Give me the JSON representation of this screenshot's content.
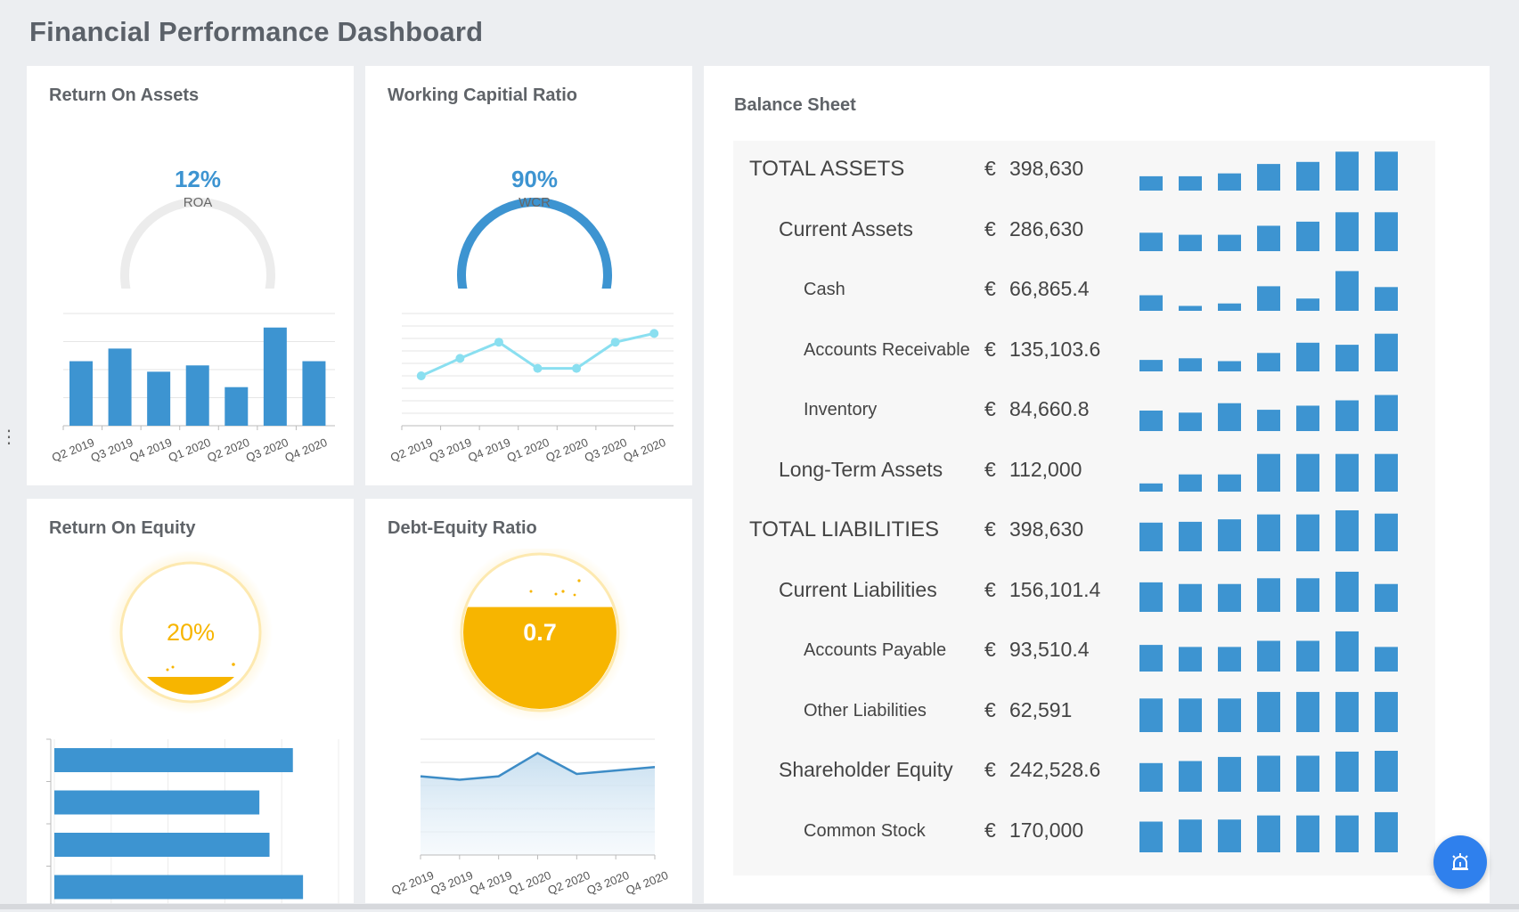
{
  "page": {
    "title": "Financial Performance Dashboard"
  },
  "cards": {
    "roa": {
      "title": "Return On Assets",
      "gauge": {
        "value_text": "12%",
        "label": "ROA",
        "fraction": 0.12
      },
      "chart_data": {
        "type": "bar",
        "categories": [
          "Q2 2019",
          "Q3 2019",
          "Q4 2019",
          "Q1 2020",
          "Q2 2020",
          "Q3 2020",
          "Q4 2020"
        ],
        "values": [
          9.2,
          11,
          7.7,
          8.6,
          5.5,
          14,
          9.2
        ],
        "ylim": [
          0,
          16
        ]
      }
    },
    "wcr": {
      "title": "Working Capitial Ratio",
      "gauge": {
        "value_text": "90%",
        "label": "WCR",
        "fraction": 0.9
      },
      "chart_data": {
        "type": "line",
        "categories": [
          "Q2 2019",
          "Q3 2019",
          "Q4 2019",
          "Q1 2020",
          "Q2 2020",
          "Q3 2020",
          "Q4 2020"
        ],
        "values": [
          0.5,
          1.2,
          1.85,
          0.8,
          0.8,
          1.85,
          2.2
        ],
        "ylim": [
          -1.5,
          3.0
        ]
      }
    },
    "roe": {
      "title": "Return On Equity",
      "gauge": {
        "value_text": "20%",
        "fraction": 0.2
      },
      "chart_data": {
        "type": "bar",
        "orientation": "horizontal",
        "values": [
          23.5,
          20.2,
          21.2,
          24.5
        ],
        "xlim": [
          0,
          28
        ]
      }
    },
    "der": {
      "title": "Debt-Equity Ratio",
      "gauge": {
        "value_text": "0.7",
        "fraction": 0.7
      },
      "chart_data": {
        "type": "area",
        "categories": [
          "Q2 2019",
          "Q3 2019",
          "Q4 2019",
          "Q1 2020",
          "Q2 2020",
          "Q3 2020",
          "Q4 2020"
        ],
        "values": [
          0.68,
          0.65,
          0.68,
          0.88,
          0.7,
          0.73,
          0.76
        ],
        "ylim": [
          0,
          1
        ]
      }
    }
  },
  "balance_sheet": {
    "title": "Balance Sheet",
    "currency": "€",
    "rows": [
      {
        "label": "TOTAL ASSETS",
        "level": 0,
        "value": "398,630",
        "spark": [
          0.35,
          0.35,
          0.42,
          0.65,
          0.7,
          0.95,
          0.95
        ]
      },
      {
        "label": "Current Assets",
        "level": 1,
        "value": "286,630",
        "spark": [
          0.45,
          0.4,
          0.4,
          0.62,
          0.72,
          0.95,
          0.95
        ]
      },
      {
        "label": "Cash",
        "level": 2,
        "value": "66,865.4",
        "spark": [
          0.38,
          0.12,
          0.18,
          0.6,
          0.3,
          0.97,
          0.58
        ]
      },
      {
        "label": "Accounts Receivable",
        "level": 2,
        "value": "135,103.6",
        "spark": [
          0.28,
          0.32,
          0.25,
          0.45,
          0.7,
          0.65,
          0.92
        ]
      },
      {
        "label": "Inventory",
        "level": 2,
        "value": "84,660.8",
        "spark": [
          0.5,
          0.45,
          0.68,
          0.52,
          0.62,
          0.75,
          0.88
        ]
      },
      {
        "label": "Long-Term Assets",
        "level": 1,
        "value": "112,000",
        "spark": [
          0.2,
          0.42,
          0.42,
          0.92,
          0.92,
          0.92,
          0.92
        ]
      },
      {
        "label": "TOTAL LIABILITIES",
        "level": 0,
        "value": "398,630",
        "spark": [
          0.7,
          0.72,
          0.78,
          0.9,
          0.9,
          1.0,
          0.92
        ]
      },
      {
        "label": "Current Liabilities",
        "level": 1,
        "value": "156,101.4",
        "spark": [
          0.72,
          0.68,
          0.68,
          0.82,
          0.82,
          0.98,
          0.68
        ]
      },
      {
        "label": "Accounts Payable",
        "level": 2,
        "value": "93,510.4",
        "spark": [
          0.65,
          0.6,
          0.6,
          0.75,
          0.75,
          0.98,
          0.6
        ]
      },
      {
        "label": "Other Liabilities",
        "level": 2,
        "value": "62,591",
        "spark": [
          0.82,
          0.82,
          0.82,
          0.98,
          0.98,
          0.98,
          0.98
        ]
      },
      {
        "label": "Shareholder Equity",
        "level": 1,
        "value": "242,528.6",
        "spark": [
          0.7,
          0.75,
          0.85,
          0.88,
          0.88,
          0.98,
          1.0
        ]
      },
      {
        "label": "Common Stock",
        "level": 2,
        "value": "170,000",
        "spark": [
          0.75,
          0.8,
          0.8,
          0.9,
          0.9,
          0.9,
          0.98
        ]
      }
    ]
  },
  "colors": {
    "bar": "#3d94d1",
    "line": "#8adff0",
    "gold": "#f7b500",
    "gauge_track": "#ececec"
  },
  "fab": {
    "icon": "alarm-icon"
  }
}
